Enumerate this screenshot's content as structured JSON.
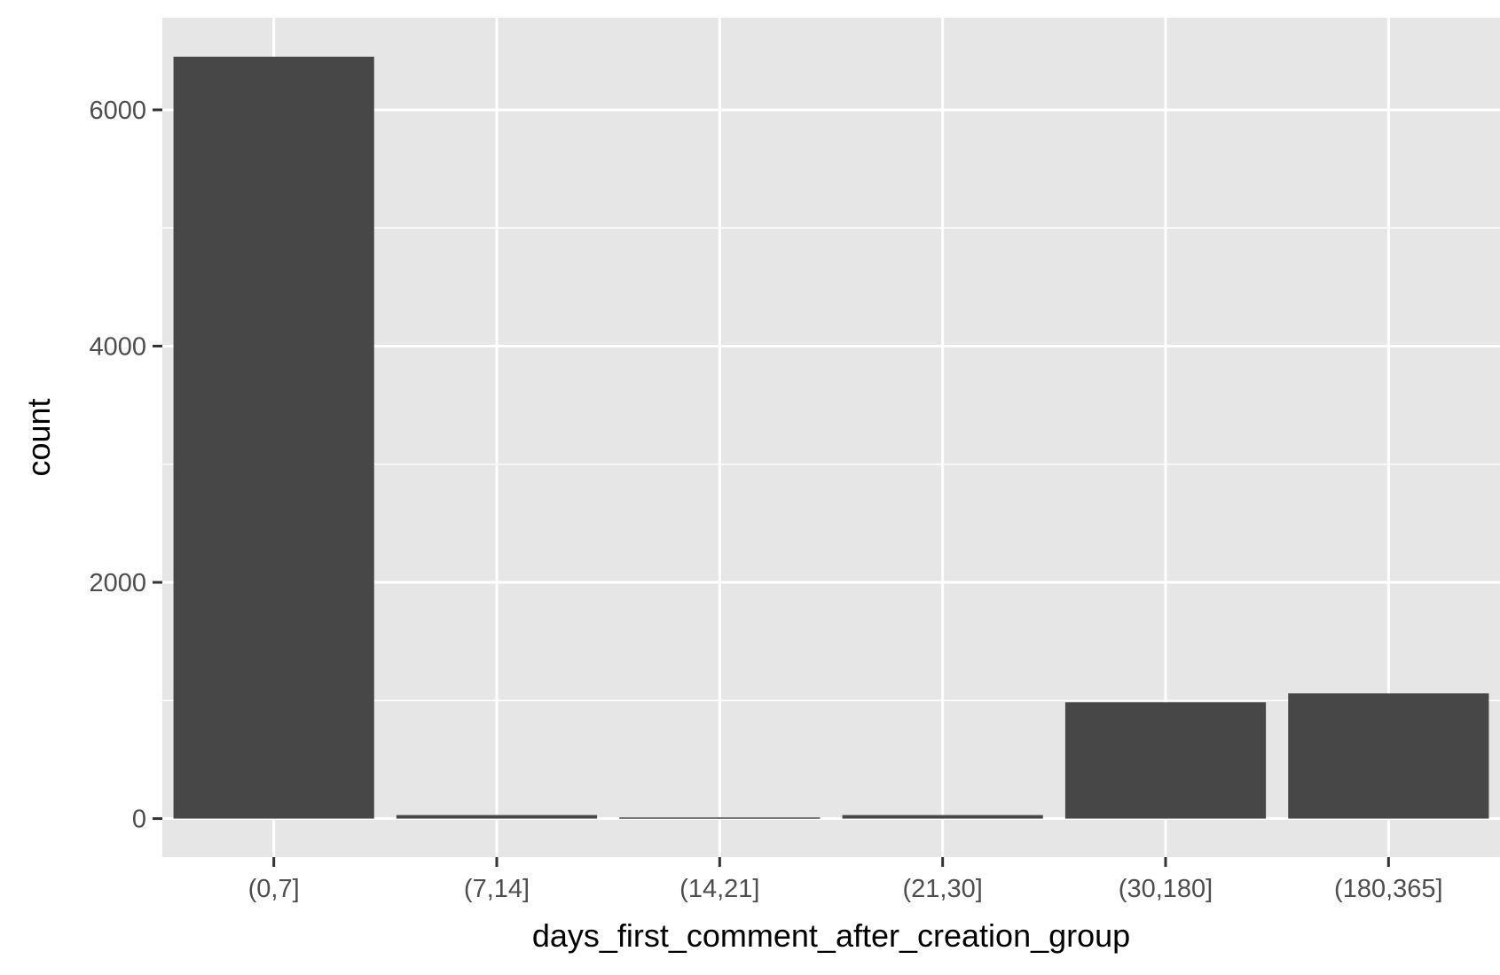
{
  "chart_data": {
    "type": "bar",
    "categories": [
      "(0,7]",
      "(7,14]",
      "(14,21]",
      "(21,30]",
      "(30,180]",
      "(180,365]"
    ],
    "values": [
      6450,
      30,
      10,
      30,
      985,
      1060
    ],
    "xlabel": "days_first_comment_after_creation_group",
    "ylabel": "count",
    "ylim": [
      -326,
      6780
    ],
    "y_ticks": [
      0,
      2000,
      4000,
      6000
    ],
    "y_tick_labels": [
      "0",
      "2000",
      "4000",
      "6000"
    ],
    "grid": true,
    "legend": "none",
    "colors": {
      "panel_background": "#e6e6e6",
      "grid_line": "#ffffff",
      "bar_fill": "#474747",
      "tick_label": "#4d4d4d",
      "axis_title": "#000000"
    }
  }
}
